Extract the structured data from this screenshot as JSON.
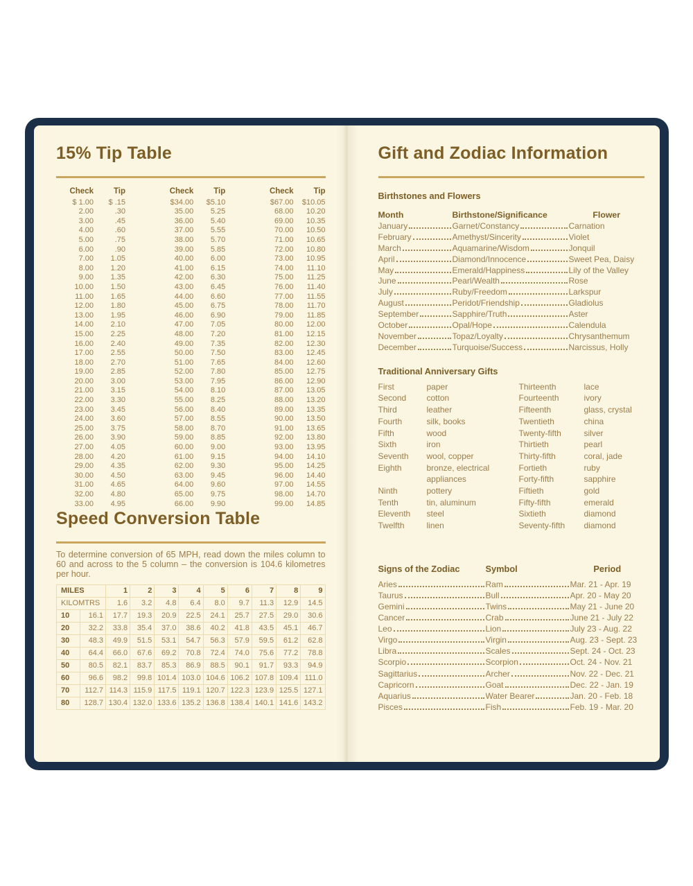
{
  "colors": {
    "cover_navy": "#1b3048",
    "page_cream": "#faf6e2",
    "heading_brown": "#7c5e26",
    "body_brown": "#9c7d4c",
    "rule_gold": "#c9a55e",
    "table_border": "#eadcae"
  },
  "left_page": {
    "tip_table": {
      "title": "15% Tip Table",
      "col_headers": [
        "Check",
        "Tip"
      ],
      "columns": [
        [
          [
            "$ 1.00",
            "$ .15"
          ],
          [
            "2.00",
            ".30"
          ],
          [
            "3.00",
            ".45"
          ],
          [
            "4.00",
            ".60"
          ],
          [
            "5.00",
            ".75"
          ],
          [
            "6.00",
            ".90"
          ],
          [
            "7.00",
            "1.05"
          ],
          [
            "8.00",
            "1.20"
          ],
          [
            "9.00",
            "1.35"
          ],
          [
            "10.00",
            "1.50"
          ],
          [
            "11.00",
            "1.65"
          ],
          [
            "12.00",
            "1.80"
          ],
          [
            "13.00",
            "1.95"
          ],
          [
            "14.00",
            "2.10"
          ],
          [
            "15.00",
            "2.25"
          ],
          [
            "16.00",
            "2.40"
          ],
          [
            "17.00",
            "2.55"
          ],
          [
            "18.00",
            "2.70"
          ],
          [
            "19.00",
            "2.85"
          ],
          [
            "20.00",
            "3.00"
          ],
          [
            "21.00",
            "3.15"
          ],
          [
            "22.00",
            "3.30"
          ],
          [
            "23.00",
            "3.45"
          ],
          [
            "24.00",
            "3.60"
          ],
          [
            "25.00",
            "3.75"
          ],
          [
            "26.00",
            "3.90"
          ],
          [
            "27.00",
            "4.05"
          ],
          [
            "28.00",
            "4.20"
          ],
          [
            "29.00",
            "4.35"
          ],
          [
            "30.00",
            "4.50"
          ],
          [
            "31.00",
            "4.65"
          ],
          [
            "32.00",
            "4.80"
          ],
          [
            "33.00",
            "4.95"
          ]
        ],
        [
          [
            "$34.00",
            "$5.10"
          ],
          [
            "35.00",
            "5.25"
          ],
          [
            "36.00",
            "5.40"
          ],
          [
            "37.00",
            "5.55"
          ],
          [
            "38.00",
            "5.70"
          ],
          [
            "39.00",
            "5.85"
          ],
          [
            "40.00",
            "6.00"
          ],
          [
            "41.00",
            "6.15"
          ],
          [
            "42.00",
            "6.30"
          ],
          [
            "43.00",
            "6.45"
          ],
          [
            "44.00",
            "6.60"
          ],
          [
            "45.00",
            "6.75"
          ],
          [
            "46.00",
            "6.90"
          ],
          [
            "47.00",
            "7.05"
          ],
          [
            "48.00",
            "7.20"
          ],
          [
            "49.00",
            "7.35"
          ],
          [
            "50.00",
            "7.50"
          ],
          [
            "51.00",
            "7.65"
          ],
          [
            "52.00",
            "7.80"
          ],
          [
            "53.00",
            "7.95"
          ],
          [
            "54.00",
            "8.10"
          ],
          [
            "55.00",
            "8.25"
          ],
          [
            "56.00",
            "8.40"
          ],
          [
            "57.00",
            "8.55"
          ],
          [
            "58.00",
            "8.70"
          ],
          [
            "59.00",
            "8.85"
          ],
          [
            "60.00",
            "9.00"
          ],
          [
            "61.00",
            "9.15"
          ],
          [
            "62.00",
            "9.30"
          ],
          [
            "63.00",
            "9.45"
          ],
          [
            "64.00",
            "9.60"
          ],
          [
            "65.00",
            "9.75"
          ],
          [
            "66.00",
            "9.90"
          ]
        ],
        [
          [
            "$67.00",
            "$10.05"
          ],
          [
            "68.00",
            "10.20"
          ],
          [
            "69.00",
            "10.35"
          ],
          [
            "70.00",
            "10.50"
          ],
          [
            "71.00",
            "10.65"
          ],
          [
            "72.00",
            "10.80"
          ],
          [
            "73.00",
            "10.95"
          ],
          [
            "74.00",
            "11.10"
          ],
          [
            "75.00",
            "11.25"
          ],
          [
            "76.00",
            "11.40"
          ],
          [
            "77.00",
            "11.55"
          ],
          [
            "78.00",
            "11.70"
          ],
          [
            "79.00",
            "11.85"
          ],
          [
            "80.00",
            "12.00"
          ],
          [
            "81.00",
            "12.15"
          ],
          [
            "82.00",
            "12.30"
          ],
          [
            "83.00",
            "12.45"
          ],
          [
            "84.00",
            "12.60"
          ],
          [
            "85.00",
            "12.75"
          ],
          [
            "86.00",
            "12.90"
          ],
          [
            "87.00",
            "13.05"
          ],
          [
            "88.00",
            "13.20"
          ],
          [
            "89.00",
            "13.35"
          ],
          [
            "90.00",
            "13.50"
          ],
          [
            "91.00",
            "13.65"
          ],
          [
            "92.00",
            "13.80"
          ],
          [
            "93.00",
            "13.95"
          ],
          [
            "94.00",
            "14.10"
          ],
          [
            "95.00",
            "14.25"
          ],
          [
            "96.00",
            "14.40"
          ],
          [
            "97.00",
            "14.55"
          ],
          [
            "98.00",
            "14.70"
          ],
          [
            "99.00",
            "14.85"
          ]
        ]
      ]
    },
    "speed_table": {
      "title": "Speed Conversion Table",
      "intro": "To determine conversion of 65 MPH, read down the miles column to 60 and across to the 5 column – the conversion is 104.6 kilometres per hour.",
      "header_label": "MILES",
      "header_cols": [
        "1",
        "2",
        "3",
        "4",
        "5",
        "6",
        "7",
        "8",
        "9"
      ],
      "kilomtrs_label": "KILOMTRS",
      "kilomtrs_values": [
        "1.6",
        "3.2",
        "4.8",
        "6.4",
        "8.0",
        "9.7",
        "11.3",
        "12.9",
        "14.5"
      ],
      "rows": [
        {
          "label": "10",
          "values": [
            "16.1",
            "17.7",
            "19.3",
            "20.9",
            "22.5",
            "24.1",
            "25.7",
            "27.5",
            "29.0",
            "30.6"
          ]
        },
        {
          "label": "20",
          "values": [
            "32.2",
            "33.8",
            "35.4",
            "37.0",
            "38.6",
            "40.2",
            "41.8",
            "43.5",
            "45.1",
            "46.7"
          ]
        },
        {
          "label": "30",
          "values": [
            "48.3",
            "49.9",
            "51.5",
            "53.1",
            "54.7",
            "56.3",
            "57.9",
            "59.5",
            "61.2",
            "62.8"
          ]
        },
        {
          "label": "40",
          "values": [
            "64.4",
            "66.0",
            "67.6",
            "69.2",
            "70.8",
            "72.4",
            "74.0",
            "75.6",
            "77.2",
            "78.8"
          ]
        },
        {
          "label": "50",
          "values": [
            "80.5",
            "82.1",
            "83.7",
            "85.3",
            "86.9",
            "88.5",
            "90.1",
            "91.7",
            "93.3",
            "94.9"
          ]
        },
        {
          "label": "60",
          "values": [
            "96.6",
            "98.2",
            "99.8",
            "101.4",
            "103.0",
            "104.6",
            "106.2",
            "107.8",
            "109.4",
            "111.0"
          ]
        },
        {
          "label": "70",
          "values": [
            "112.7",
            "114.3",
            "115.9",
            "117.5",
            "119.1",
            "120.7",
            "122.3",
            "123.9",
            "125.5",
            "127.1"
          ]
        },
        {
          "label": "80",
          "values": [
            "128.7",
            "130.4",
            "132.0",
            "133.6",
            "135.2",
            "136.8",
            "138.4",
            "140.1",
            "141.6",
            "143.2"
          ]
        }
      ]
    }
  },
  "right_page": {
    "title": "Gift and Zodiac Information",
    "birthstones": {
      "heading": "Birthstones and Flowers",
      "col_headers": [
        "Month",
        "Birthstone/Significance",
        "Flower"
      ],
      "rows": [
        {
          "month": "January",
          "stone": "Garnet/Constancy",
          "flower": "Carnation"
        },
        {
          "month": "February",
          "stone": "Amethyst/Sincerity",
          "flower": "Violet"
        },
        {
          "month": "March",
          "stone": "Aquamarine/Wisdom",
          "flower": "Jonquil"
        },
        {
          "month": "April",
          "stone": "Diamond/Innocence",
          "flower": "Sweet Pea, Daisy"
        },
        {
          "month": "May",
          "stone": "Emerald/Happiness",
          "flower": "Lily of the Valley"
        },
        {
          "month": "June",
          "stone": "Pearl/Wealth",
          "flower": "Rose"
        },
        {
          "month": "July",
          "stone": "Ruby/Freedom",
          "flower": "Larkspur"
        },
        {
          "month": "August",
          "stone": "Peridot/Friendship",
          "flower": "Gladiolus"
        },
        {
          "month": "September",
          "stone": "Sapphire/Truth",
          "flower": "Aster"
        },
        {
          "month": "October",
          "stone": "Opal/Hope",
          "flower": "Calendula"
        },
        {
          "month": "November",
          "stone": "Topaz/Loyalty",
          "flower": "Chrysanthemum"
        },
        {
          "month": "December",
          "stone": "Turquoise/Success",
          "flower": "Narcissus, Holly"
        }
      ]
    },
    "anniversary": {
      "heading": "Traditional Anniversary Gifts",
      "rows": [
        {
          "c1": "First",
          "c2": "paper",
          "c3": "Thirteenth",
          "c4": "lace"
        },
        {
          "c1": "Second",
          "c2": "cotton",
          "c3": "Fourteenth",
          "c4": "ivory"
        },
        {
          "c1": "Third",
          "c2": "leather",
          "c3": "Fifteenth",
          "c4": "glass, crystal"
        },
        {
          "c1": "Fourth",
          "c2": "silk, books",
          "c3": "Twentieth",
          "c4": "china"
        },
        {
          "c1": "Fifth",
          "c2": "wood",
          "c3": "Twenty-fifth",
          "c4": "silver"
        },
        {
          "c1": "Sixth",
          "c2": "iron",
          "c3": "Thirtieth",
          "c4": "pearl"
        },
        {
          "c1": "Seventh",
          "c2": "wool, copper",
          "c3": "Thirty-fifth",
          "c4": "coral, jade"
        },
        {
          "c1": "Eighth",
          "c2": "bronze, electrical",
          "c3": "Fortieth",
          "c4": "ruby"
        },
        {
          "c1": "",
          "c2": "appliances",
          "c3": "Forty-fifth",
          "c4": "sapphire"
        },
        {
          "c1": "Ninth",
          "c2": "pottery",
          "c3": "Fiftieth",
          "c4": "gold"
        },
        {
          "c1": "Tenth",
          "c2": "tin, aluminum",
          "c3": "Fifty-fifth",
          "c4": "emerald"
        },
        {
          "c1": "Eleventh",
          "c2": "steel",
          "c3": "Sixtieth",
          "c4": "diamond"
        },
        {
          "c1": "Twelfth",
          "c2": "linen",
          "c3": "Seventy-fifth",
          "c4": "diamond"
        }
      ]
    },
    "zodiac": {
      "col_headers": [
        "Signs of the Zodiac",
        "Symbol",
        "Period"
      ],
      "rows": [
        {
          "sign": "Aries",
          "symbol": "Ram",
          "period": "Mar. 21 - Apr. 19"
        },
        {
          "sign": "Taurus",
          "symbol": "Bull",
          "period": "Apr. 20 - May 20"
        },
        {
          "sign": "Gemini",
          "symbol": "Twins",
          "period": "May 21 - June 20"
        },
        {
          "sign": "Cancer",
          "symbol": "Crab",
          "period": "June 21 - July 22"
        },
        {
          "sign": "Leo",
          "symbol": "Lion",
          "period": "July 23 - Aug. 22"
        },
        {
          "sign": "Virgo",
          "symbol": "Virgin",
          "period": "Aug. 23 - Sept. 23"
        },
        {
          "sign": "Libra",
          "symbol": "Scales",
          "period": "Sept. 24 - Oct. 23"
        },
        {
          "sign": "Scorpio",
          "symbol": "Scorpion",
          "period": "Oct. 24 - Nov. 21"
        },
        {
          "sign": "Sagittarius",
          "symbol": "Archer",
          "period": "Nov. 22 - Dec. 21"
        },
        {
          "sign": "Capricorn",
          "symbol": "Goat",
          "period": "Dec. 22 - Jan. 19"
        },
        {
          "sign": "Aquarius",
          "symbol": "Water Bearer",
          "period": "Jan. 20 - Feb. 18"
        },
        {
          "sign": "Pisces",
          "symbol": "Fish",
          "period": "Feb. 19 - Mar. 20"
        }
      ]
    }
  }
}
